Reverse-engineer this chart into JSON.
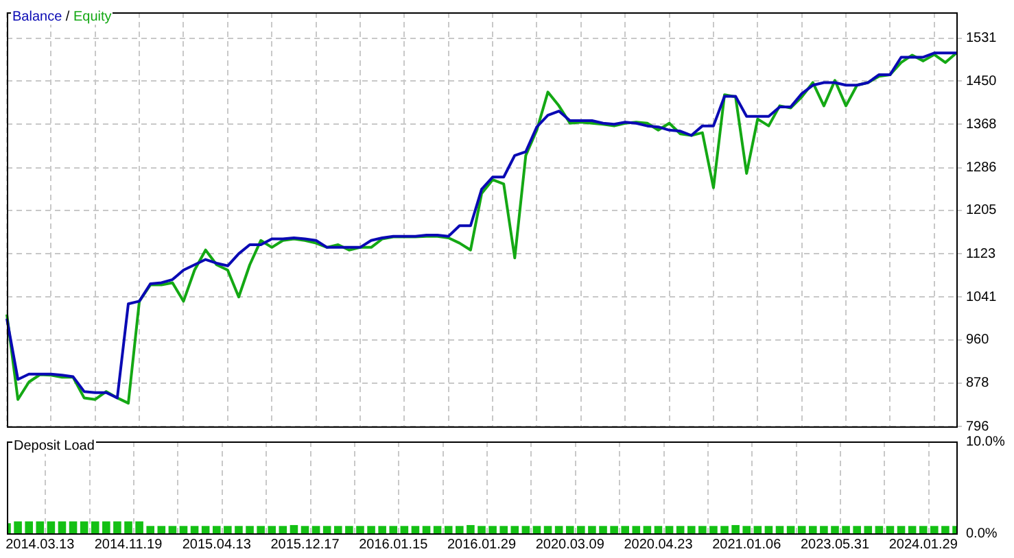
{
  "chart_data": [
    {
      "type": "line",
      "annotations": [
        "/"
      ],
      "categories": [
        null,
        null,
        null,
        "2014.03.13",
        null,
        null,
        null,
        null,
        null,
        null,
        null,
        "2014.11.19",
        null,
        null,
        null,
        null,
        null,
        null,
        null,
        "2015.04.13",
        null,
        null,
        null,
        null,
        null,
        null,
        null,
        "2015.12.17",
        null,
        null,
        null,
        null,
        null,
        null,
        null,
        "2016.01.15",
        null,
        null,
        null,
        null,
        null,
        null,
        null,
        "2016.01.29",
        null,
        null,
        null,
        null,
        null,
        null,
        null,
        "2020.03.09",
        null,
        null,
        null,
        null,
        null,
        null,
        null,
        "2020.04.23",
        null,
        null,
        null,
        null,
        null,
        null,
        null,
        "2021.01.06",
        null,
        null,
        null,
        null,
        null,
        null,
        null,
        "2023.05.31",
        null,
        null,
        null,
        null,
        null,
        null,
        null,
        "2024.01.29",
        null,
        null,
        null
      ],
      "series": [
        {
          "name": "Balance",
          "color": "#0a0ab4",
          "values": [
            1000,
            885,
            895,
            895,
            895,
            893,
            890,
            862,
            860,
            860,
            850,
            1028,
            1033,
            1066,
            1068,
            1074,
            1092,
            1102,
            1112,
            1105,
            1100,
            1123,
            1140,
            1140,
            1151,
            1151,
            1153,
            1151,
            1148,
            1135,
            1135,
            1135,
            1135,
            1148,
            1153,
            1156,
            1156,
            1156,
            1158,
            1158,
            1156,
            1176,
            1176,
            1245,
            1268,
            1268,
            1309,
            1316,
            1363,
            1385,
            1393,
            1375,
            1375,
            1375,
            1370,
            1368,
            1372,
            1370,
            1365,
            1363,
            1357,
            1355,
            1347,
            1365,
            1365,
            1421,
            1421,
            1383,
            1383,
            1383,
            1401,
            1401,
            1426,
            1442,
            1447,
            1447,
            1442,
            1442,
            1447,
            1462,
            1462,
            1495,
            1495,
            1495,
            1503,
            1503,
            1503
          ]
        },
        {
          "name": "Equity",
          "color": "#14a814",
          "values": [
            1008,
            847,
            880,
            894,
            893,
            889,
            889,
            850,
            847,
            862,
            850,
            840,
            1033,
            1064,
            1064,
            1068,
            1033,
            1092,
            1130,
            1102,
            1092,
            1041,
            1102,
            1148,
            1135,
            1148,
            1151,
            1148,
            1143,
            1135,
            1140,
            1130,
            1135,
            1135,
            1151,
            1155,
            1155,
            1155,
            1156,
            1156,
            1153,
            1143,
            1130,
            1237,
            1263,
            1255,
            1115,
            1309,
            1357,
            1429,
            1403,
            1370,
            1372,
            1370,
            1368,
            1365,
            1370,
            1372,
            1370,
            1357,
            1370,
            1350,
            1347,
            1352,
            1248,
            1424,
            1420,
            1275,
            1378,
            1365,
            1403,
            1399,
            1420,
            1447,
            1403,
            1451,
            1403,
            1442,
            1447,
            1459,
            1462,
            1485,
            1499,
            1488,
            1500,
            1485,
            1503
          ]
        }
      ],
      "ylim": [
        796,
        1580
      ],
      "yticks": [
        796,
        878,
        960,
        1041,
        1123,
        1205,
        1286,
        1368,
        1450,
        1531
      ],
      "grid": true,
      "legend": "top left",
      "tick_labels": "y",
      "marker": "none",
      "line_style": "solid"
    },
    {
      "type": "bar",
      "title": "Deposit Load",
      "categories": [
        null,
        null,
        null,
        "2014.03.13",
        null,
        null,
        null,
        null,
        null,
        null,
        null,
        "2014.11.19",
        null,
        null,
        null,
        null,
        null,
        null,
        null,
        "2015.04.13",
        null,
        null,
        null,
        null,
        null,
        null,
        null,
        "2015.12.17",
        null,
        null,
        null,
        null,
        null,
        null,
        null,
        "2016.01.15",
        null,
        null,
        null,
        null,
        null,
        null,
        null,
        "2016.01.29",
        null,
        null,
        null,
        null,
        null,
        null,
        null,
        "2020.03.09",
        null,
        null,
        null,
        null,
        null,
        null,
        null,
        "2020.04.23",
        null,
        null,
        null,
        null,
        null,
        null,
        null,
        "2021.01.06",
        null,
        null,
        null,
        null,
        null,
        null,
        null,
        "2023.05.31",
        null,
        null,
        null,
        null,
        null,
        null,
        null,
        "2024.01.29",
        null,
        null,
        null
      ],
      "values": [
        1.1,
        1.3,
        1.3,
        1.3,
        1.3,
        1.3,
        1.3,
        1.3,
        1.3,
        1.3,
        1.3,
        1.3,
        1.3,
        0.8,
        0.8,
        0.8,
        0.8,
        0.8,
        0.8,
        0.8,
        0.8,
        0.8,
        0.8,
        0.8,
        0.8,
        0.8,
        0.9,
        0.8,
        0.8,
        0.8,
        0.8,
        0.8,
        0.8,
        0.8,
        0.8,
        0.8,
        0.8,
        0.8,
        0.8,
        0.8,
        0.8,
        0.8,
        0.9,
        0.8,
        0.8,
        0.8,
        0.8,
        0.8,
        0.8,
        0.8,
        0.8,
        0.8,
        0.8,
        0.8,
        0.8,
        0.8,
        0.8,
        0.8,
        0.8,
        0.8,
        0.8,
        0.8,
        0.8,
        0.8,
        0.8,
        0.8,
        0.9,
        0.8,
        0.8,
        0.8,
        0.8,
        0.8,
        0.8,
        0.8,
        0.8,
        0.8,
        0.8,
        0.8,
        0.8,
        0.8,
        0.8,
        0.8,
        0.8,
        0.8,
        0.8,
        0.8,
        0.8
      ],
      "color": "#14c014",
      "ylim": [
        0,
        10
      ],
      "yticks": [
        {
          "value": 0,
          "label": "0.0%"
        },
        {
          "value": 10,
          "label": "10.0%"
        }
      ],
      "grid": "x"
    }
  ]
}
